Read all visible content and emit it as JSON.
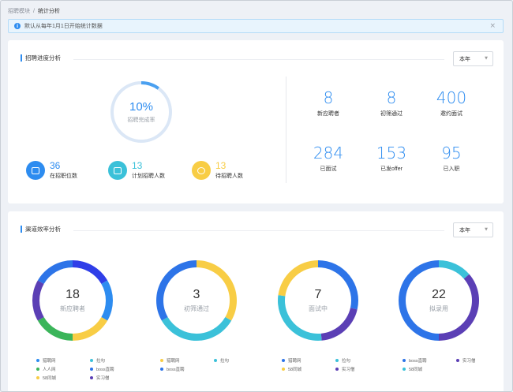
{
  "breadcrumb": {
    "parent": "招聘模块",
    "separator": "/",
    "current": "统计分析"
  },
  "notice": {
    "text": "默认从每年1月1日开始统计数据",
    "icon": "info-icon",
    "close": "×"
  },
  "progress_card": {
    "title": "招聘进度分析",
    "select_value": "本年",
    "ring": {
      "percent_text": "10%",
      "label": "招聘完成率",
      "percent": 10
    },
    "stats": [
      {
        "value": "36",
        "label": "在招职位数",
        "color": "#2d8cf0",
        "value_color": "#2d8cf0",
        "icon": "briefcase-icon"
      },
      {
        "value": "13",
        "label": "计划招聘人数",
        "color": "#3bc1d9",
        "value_color": "#3bc1d9",
        "icon": "calendar-icon"
      },
      {
        "value": "13",
        "label": "待招聘人数",
        "color": "#f8cd45",
        "value_color": "#f8cd45",
        "icon": "clock-icon"
      }
    ],
    "kpis": [
      {
        "value": "8",
        "label": "新应聘者"
      },
      {
        "value": "8",
        "label": "初筛通过"
      },
      {
        "value": "400",
        "label": "邀约面试"
      },
      {
        "value": "284",
        "label": "已面试"
      },
      {
        "value": "153",
        "label": "已发offer"
      },
      {
        "value": "95",
        "label": "已入职"
      }
    ]
  },
  "channel_card": {
    "title": "渠道效率分析",
    "select_value": "本年",
    "colors": {
      "猎聘网": "#2d8cf0",
      "拉勾": "#3bc1d9",
      "人人网": "#3bb55a",
      "boss直聘": "#2d74e8",
      "58同城": "#f8cd45",
      "实习僧": "#5b3fb5",
      "blue_dark": "#2f3ee8"
    },
    "donuts": [
      {
        "count": "18",
        "label": "新应聘者",
        "segments": [
          {
            "name": "猎聘网",
            "value": 3,
            "color": "#2f3ee8"
          },
          {
            "name": "拉勾",
            "value": 3,
            "color": "#2d8cf0"
          },
          {
            "name": "boss直聘",
            "value": 3,
            "color": "#f8cd45"
          },
          {
            "name": "人人网",
            "value": 3,
            "color": "#3bb55a"
          },
          {
            "name": "实习僧",
            "value": 3,
            "color": "#5b3fb5"
          },
          {
            "name": "58同城",
            "value": 3,
            "color": "#2d74e8"
          }
        ],
        "legend": [
          {
            "name": "猎聘网",
            "color": "#2d8cf0"
          },
          {
            "name": "拉勾",
            "color": "#3bc1d9"
          },
          {
            "name": "人人网",
            "color": "#3bb55a"
          },
          {
            "name": "boss直聘",
            "color": "#2d74e8"
          },
          {
            "name": "58同城",
            "color": "#f8cd45"
          },
          {
            "name": "实习僧",
            "color": "#5b3fb5"
          }
        ]
      },
      {
        "count": "3",
        "label": "初筛通过",
        "segments": [
          {
            "name": "猎聘网",
            "value": 1,
            "color": "#f8cd45"
          },
          {
            "name": "拉勾",
            "value": 1,
            "color": "#3bc1d9"
          },
          {
            "name": "boss直聘",
            "value": 1,
            "color": "#2d74e8"
          }
        ],
        "legend": [
          {
            "name": "猎聘网",
            "color": "#f8cd45"
          },
          {
            "name": "拉勾",
            "color": "#3bc1d9"
          },
          {
            "name": "boss直聘",
            "color": "#2d74e8"
          }
        ]
      },
      {
        "count": "7",
        "label": "面试中",
        "segments": [
          {
            "name": "猎聘网",
            "value": 2,
            "color": "#2d74e8"
          },
          {
            "name": "实习僧",
            "value": 1.4,
            "color": "#5b3fb5"
          },
          {
            "name": "拉勾",
            "value": 2,
            "color": "#3bc1d9"
          },
          {
            "name": "58同城",
            "value": 1.6,
            "color": "#f8cd45"
          }
        ],
        "legend": [
          {
            "name": "猎聘网",
            "color": "#2d74e8"
          },
          {
            "name": "拉勾",
            "color": "#3bc1d9"
          },
          {
            "name": "58同城",
            "color": "#f8cd45"
          },
          {
            "name": "实习僧",
            "color": "#5b3fb5"
          }
        ]
      },
      {
        "count": "22",
        "label": "拟录用",
        "segments": [
          {
            "name": "58同城",
            "value": 3,
            "color": "#3bc1d9"
          },
          {
            "name": "实习僧",
            "value": 8,
            "color": "#5b3fb5"
          },
          {
            "name": "boss直聘",
            "value": 11,
            "color": "#2d74e8"
          }
        ],
        "legend": [
          {
            "name": "boss直聘",
            "color": "#2d74e8"
          },
          {
            "name": "实习僧",
            "color": "#5b3fb5"
          },
          {
            "name": "58同城",
            "color": "#3bc1d9"
          }
        ]
      }
    ]
  }
}
